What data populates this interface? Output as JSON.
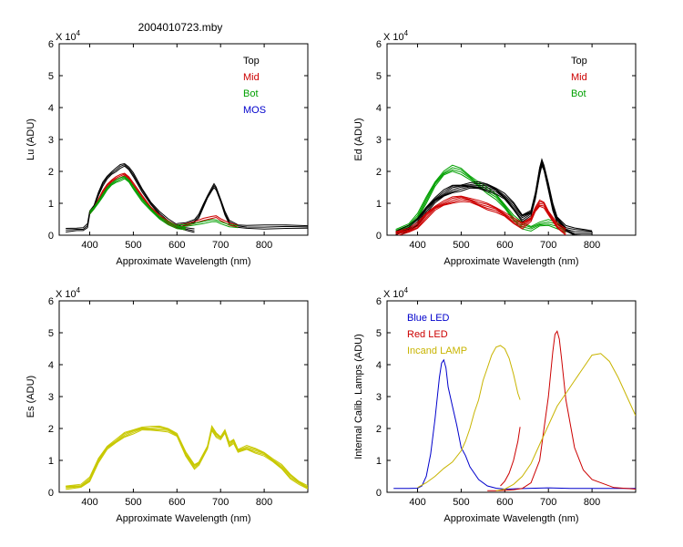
{
  "figure_title": "2004010723.mby",
  "chart_data": [
    {
      "id": "lu",
      "type": "line",
      "ylabel": "Lu (ADU)",
      "xlabel": "Approximate Wavelength (nm)",
      "multiplier_base": "X 10",
      "multiplier_exp": "4",
      "xlim": [
        330,
        900
      ],
      "ylim": [
        0,
        6
      ],
      "xticks": [
        400,
        500,
        600,
        700,
        800
      ],
      "yticks": [
        0,
        1,
        2,
        3,
        4,
        5,
        6
      ],
      "legend": [
        {
          "label": "Top",
          "color": "#000000"
        },
        {
          "label": "Mid",
          "color": "#cc0000"
        },
        {
          "label": "Bot",
          "color": "#00a000"
        },
        {
          "label": "MOS",
          "color": "#0000cc"
        }
      ],
      "series": [
        {
          "name": "Top",
          "color": "#000000",
          "bands": 3,
          "spread": 0.05,
          "x": [
            345,
            370,
            385,
            395,
            400,
            410,
            420,
            430,
            440,
            450,
            460,
            470,
            480,
            490,
            500,
            520,
            540,
            560,
            580,
            600,
            620,
            640
          ],
          "y": [
            0.15,
            0.18,
            0.2,
            0.3,
            0.7,
            0.9,
            1.3,
            1.6,
            1.8,
            1.95,
            2.05,
            2.15,
            2.2,
            2.1,
            1.9,
            1.4,
            1.0,
            0.7,
            0.45,
            0.28,
            0.2,
            0.15
          ]
        },
        {
          "name": "Top",
          "color": "#000000",
          "bands": 3,
          "spread": 0.05,
          "x": [
            600,
            620,
            640,
            650,
            660,
            670,
            680,
            685,
            690,
            700,
            710,
            720,
            740,
            760,
            800,
            850,
            900
          ],
          "y": [
            0.3,
            0.35,
            0.45,
            0.6,
            0.9,
            1.2,
            1.45,
            1.55,
            1.45,
            1.1,
            0.7,
            0.4,
            0.28,
            0.27,
            0.26,
            0.26,
            0.26
          ]
        },
        {
          "name": "Mid",
          "color": "#cc0000",
          "bands": 3,
          "spread": 0.04,
          "x": [
            400,
            410,
            420,
            430,
            440,
            450,
            460,
            470,
            480,
            490,
            500,
            520,
            540,
            560,
            580,
            600,
            620
          ],
          "y": [
            0.7,
            0.85,
            1.1,
            1.35,
            1.55,
            1.7,
            1.8,
            1.85,
            1.9,
            1.8,
            1.6,
            1.2,
            0.85,
            0.6,
            0.4,
            0.25,
            0.2
          ]
        },
        {
          "name": "Mid",
          "color": "#cc0000",
          "bands": 2,
          "spread": 0.03,
          "x": [
            600,
            620,
            640,
            660,
            680,
            690,
            700,
            720,
            740
          ],
          "y": [
            0.28,
            0.32,
            0.4,
            0.5,
            0.55,
            0.58,
            0.5,
            0.35,
            0.27
          ]
        },
        {
          "name": "Bot",
          "color": "#00a000",
          "bands": 3,
          "spread": 0.04,
          "x": [
            400,
            410,
            420,
            430,
            440,
            450,
            460,
            470,
            480,
            490,
            500,
            520,
            540,
            560,
            580,
            600,
            620
          ],
          "y": [
            0.7,
            0.85,
            1.05,
            1.25,
            1.45,
            1.6,
            1.7,
            1.75,
            1.8,
            1.7,
            1.5,
            1.1,
            0.8,
            0.55,
            0.38,
            0.24,
            0.2
          ]
        },
        {
          "name": "Bot",
          "color": "#00a000",
          "bands": 2,
          "spread": 0.03,
          "x": [
            600,
            620,
            640,
            660,
            680,
            690,
            700,
            720,
            740
          ],
          "y": [
            0.28,
            0.3,
            0.35,
            0.4,
            0.45,
            0.45,
            0.4,
            0.3,
            0.26
          ]
        }
      ]
    },
    {
      "id": "ed",
      "type": "line",
      "ylabel": "Ed  (ADU)",
      "xlabel": "Approximate Wavelength (nm)",
      "multiplier_base": "X 10",
      "multiplier_exp": "4",
      "xlim": [
        330,
        900
      ],
      "ylim": [
        0,
        6
      ],
      "xticks": [
        400,
        500,
        600,
        700,
        800
      ],
      "yticks": [
        0,
        1,
        2,
        3,
        4,
        5,
        6
      ],
      "legend": [
        {
          "label": "Top",
          "color": "#000000"
        },
        {
          "label": "Mid",
          "color": "#cc0000"
        },
        {
          "label": "Bot",
          "color": "#00a000"
        }
      ],
      "series": [
        {
          "name": "Bot",
          "color": "#00a000",
          "bands": 4,
          "spread": 0.08,
          "x": [
            350,
            380,
            400,
            420,
            440,
            460,
            480,
            500,
            520,
            540,
            560,
            580,
            600,
            620,
            640,
            660,
            680,
            700,
            720,
            740
          ],
          "y": [
            0.1,
            0.3,
            0.6,
            1.1,
            1.6,
            1.95,
            2.1,
            2.0,
            1.8,
            1.6,
            1.4,
            1.2,
            0.9,
            0.55,
            0.3,
            0.2,
            0.35,
            0.4,
            0.3,
            0.15
          ]
        },
        {
          "name": "Top",
          "color": "#000000",
          "bands": 6,
          "spread": 0.1,
          "x": [
            350,
            380,
            400,
            420,
            440,
            460,
            480,
            500,
            520,
            540,
            560,
            580,
            600,
            620,
            640,
            660,
            670,
            680,
            685,
            690,
            700,
            710,
            720,
            740,
            760,
            800
          ],
          "y": [
            0.05,
            0.2,
            0.4,
            0.8,
            1.1,
            1.3,
            1.45,
            1.5,
            1.55,
            1.55,
            1.5,
            1.4,
            1.2,
            0.9,
            0.55,
            0.7,
            1.2,
            2.0,
            2.3,
            2.1,
            1.5,
            0.9,
            0.5,
            0.2,
            0.1,
            0.05
          ]
        },
        {
          "name": "Mid",
          "color": "#cc0000",
          "bands": 5,
          "spread": 0.08,
          "x": [
            350,
            380,
            400,
            420,
            440,
            460,
            480,
            500,
            520,
            540,
            560,
            580,
            600,
            620,
            640,
            660,
            670,
            680,
            690,
            700,
            720,
            740
          ],
          "y": [
            0.05,
            0.15,
            0.3,
            0.6,
            0.85,
            1.0,
            1.1,
            1.15,
            1.1,
            1.0,
            0.9,
            0.8,
            0.65,
            0.45,
            0.3,
            0.5,
            0.8,
            1.0,
            0.95,
            0.7,
            0.3,
            0.1
          ]
        }
      ]
    },
    {
      "id": "es",
      "type": "line",
      "ylabel": "Es  (ADU)",
      "xlabel": "Approximate Wavelength (nm)",
      "multiplier_base": "X 10",
      "multiplier_exp": "4",
      "xlim": [
        330,
        900
      ],
      "ylim": [
        0,
        6
      ],
      "xticks": [
        400,
        500,
        600,
        700,
        800
      ],
      "yticks": [
        0,
        1,
        2,
        3,
        4,
        5,
        6
      ],
      "legend": [],
      "series": [
        {
          "name": "Es",
          "color": "#c8c800",
          "bands": 5,
          "spread": 0.06,
          "x": [
            345,
            380,
            400,
            420,
            440,
            460,
            480,
            500,
            520,
            540,
            560,
            580,
            600,
            620,
            640,
            650
          ],
          "y": [
            0.15,
            0.2,
            0.4,
            1.0,
            1.4,
            1.6,
            1.8,
            1.9,
            2.0,
            2.0,
            2.0,
            1.95,
            1.8,
            1.2,
            0.8,
            0.9
          ]
        },
        {
          "name": "Es",
          "color": "#c8c800",
          "bands": 5,
          "spread": 0.06,
          "x": [
            650,
            670,
            680,
            690,
            700,
            710,
            720,
            730,
            740,
            760,
            780,
            800,
            820,
            840,
            860,
            880,
            900
          ],
          "y": [
            0.9,
            1.4,
            2.0,
            1.8,
            1.7,
            1.9,
            1.5,
            1.6,
            1.3,
            1.4,
            1.3,
            1.2,
            1.0,
            0.8,
            0.5,
            0.3,
            0.15
          ]
        }
      ]
    },
    {
      "id": "cal",
      "type": "line",
      "ylabel": "Internal Calib. Lamps (ADU)",
      "xlabel": "Approximate Wavelength (nm)",
      "multiplier_base": "X 10",
      "multiplier_exp": "4",
      "xlim": [
        330,
        900
      ],
      "ylim": [
        0,
        6
      ],
      "xticks": [
        400,
        500,
        600,
        700,
        800
      ],
      "yticks": [
        0,
        1,
        2,
        3,
        4,
        5,
        6
      ],
      "legend_side": "left",
      "legend": [
        {
          "label": "Blue LED",
          "color": "#0000cc"
        },
        {
          "label": "Red LED",
          "color": "#cc0000"
        },
        {
          "label": "Incand LAMP",
          "color": "#c8b400"
        }
      ],
      "series": [
        {
          "name": "Blue LED",
          "color": "#0000cc",
          "bands": 1,
          "spread": 0,
          "x": [
            345,
            380,
            400,
            410,
            420,
            430,
            440,
            450,
            455,
            460,
            465,
            470,
            480,
            490,
            500,
            510,
            520,
            540,
            560,
            580,
            600,
            650,
            700,
            750,
            800,
            850,
            900
          ],
          "y": [
            0.12,
            0.12,
            0.13,
            0.2,
            0.5,
            1.2,
            2.3,
            3.6,
            4.05,
            4.15,
            3.9,
            3.3,
            2.7,
            2.1,
            1.4,
            1.15,
            0.8,
            0.4,
            0.2,
            0.13,
            0.1,
            0.12,
            0.14,
            0.12,
            0.12,
            0.12,
            0.12
          ]
        },
        {
          "name": "Red LED",
          "color": "#cc0000",
          "bands": 1,
          "spread": 0,
          "x": [
            560,
            580,
            600,
            620,
            640,
            660,
            680,
            700,
            710,
            715,
            720,
            725,
            730,
            740,
            760,
            780,
            800,
            850,
            900
          ],
          "y": [
            0.05,
            0.05,
            0.06,
            0.08,
            0.12,
            0.3,
            1.0,
            3.0,
            4.4,
            4.95,
            5.05,
            4.8,
            4.2,
            2.9,
            1.4,
            0.7,
            0.4,
            0.15,
            0.1
          ]
        },
        {
          "name": "Red LED",
          "color": "#cc0000",
          "bands": 1,
          "spread": 0,
          "x": [
            590,
            600,
            610,
            620,
            630,
            635
          ],
          "y": [
            0.2,
            0.35,
            0.6,
            1.0,
            1.6,
            2.05
          ]
        },
        {
          "name": "Incand LAMP",
          "color": "#c8b400",
          "bands": 1,
          "spread": 0,
          "x": [
            400,
            420,
            440,
            460,
            480,
            500,
            510,
            520,
            530,
            540,
            550,
            560,
            570,
            580,
            590,
            600,
            610,
            620,
            630,
            635
          ],
          "y": [
            0.15,
            0.3,
            0.5,
            0.75,
            0.95,
            1.3,
            1.6,
            2.0,
            2.5,
            2.9,
            3.5,
            3.9,
            4.3,
            4.55,
            4.6,
            4.5,
            4.2,
            3.7,
            3.1,
            2.9
          ]
        },
        {
          "name": "Incand LAMP",
          "color": "#c8b400",
          "bands": 1,
          "spread": 0,
          "x": [
            580,
            600,
            620,
            640,
            660,
            680,
            700,
            720,
            740,
            760,
            780,
            800,
            820,
            840,
            860,
            880,
            900
          ],
          "y": [
            0.05,
            0.1,
            0.25,
            0.5,
            0.9,
            1.5,
            2.1,
            2.7,
            3.1,
            3.5,
            3.9,
            4.3,
            4.35,
            4.1,
            3.6,
            3.0,
            2.4
          ]
        }
      ]
    }
  ]
}
